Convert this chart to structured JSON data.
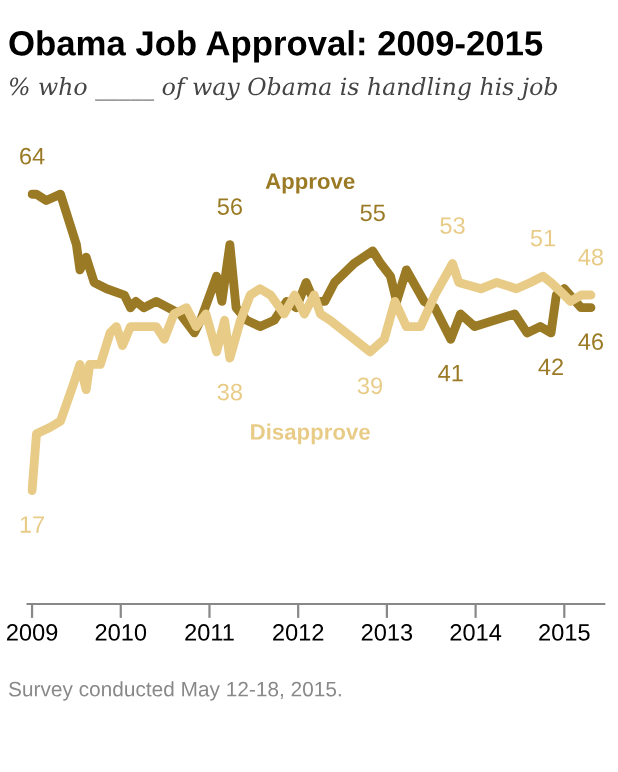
{
  "chart_data": {
    "type": "line",
    "title": "Obama Job Approval: 2009-2015",
    "subtitle": "% who _____ of way Obama is handling his job",
    "annotations": [
      "Survey conducted May 12-18, 2015."
    ],
    "xlim": [
      2008.95,
      2015.45
    ],
    "xticks": [
      2009,
      2010,
      2011,
      2012,
      2013,
      2014,
      2015
    ],
    "tick_labels": "x",
    "grid": false,
    "legend": false,
    "marker": "none",
    "line_style": "solid",
    "series": [
      {
        "name": "Approve",
        "color": "#9a7a25",
        "x": [
          2009.0,
          2009.05,
          2009.16,
          2009.32,
          2009.5,
          2009.54,
          2009.61,
          2009.7,
          2009.84,
          2010.04,
          2010.11,
          2010.17,
          2010.26,
          2010.4,
          2010.67,
          2010.83,
          2010.9,
          2011.08,
          2011.14,
          2011.23,
          2011.3,
          2011.42,
          2011.57,
          2011.73,
          2011.87,
          2011.98,
          2012.09,
          2012.18,
          2012.3,
          2012.41,
          2012.63,
          2012.84,
          2012.93,
          2013.04,
          2013.11,
          2013.22,
          2013.42,
          2013.54,
          2013.72,
          2013.83,
          2013.99,
          2014.44,
          2014.58,
          2014.73,
          2014.85,
          2014.91,
          2015.0,
          2015.19,
          2015.3
        ],
        "values": [
          64,
          64,
          63,
          64,
          56,
          52,
          54,
          50,
          49,
          48,
          46,
          47,
          46,
          47,
          45,
          42,
          44,
          51,
          47,
          56,
          46,
          44,
          43,
          44,
          47,
          46,
          50,
          47,
          47,
          50,
          53,
          55,
          53,
          51,
          47,
          52,
          47,
          46,
          41,
          45,
          43,
          45,
          42,
          43,
          42,
          48,
          49,
          46,
          46
        ],
        "value_labels": [
          "64",
          null,
          null,
          null,
          null,
          null,
          null,
          null,
          null,
          null,
          null,
          null,
          null,
          null,
          null,
          null,
          null,
          null,
          null,
          "56",
          null,
          null,
          null,
          null,
          null,
          null,
          null,
          null,
          null,
          null,
          null,
          "55",
          null,
          null,
          null,
          null,
          null,
          null,
          "41",
          null,
          null,
          null,
          null,
          null,
          "42",
          null,
          null,
          null,
          "46"
        ]
      },
      {
        "name": "Disapprove",
        "color": "#e8cb86",
        "x": [
          2009.0,
          2009.05,
          2009.2,
          2009.32,
          2009.47,
          2009.54,
          2009.61,
          2009.65,
          2009.77,
          2009.88,
          2009.95,
          2010.02,
          2010.11,
          2010.26,
          2010.4,
          2010.49,
          2010.6,
          2010.74,
          2010.85,
          2010.96,
          2011.08,
          2011.17,
          2011.23,
          2011.35,
          2011.46,
          2011.57,
          2011.69,
          2011.84,
          2011.96,
          2012.07,
          2012.18,
          2012.25,
          2012.36,
          2012.81,
          2012.97,
          2013.09,
          2013.22,
          2013.38,
          2013.54,
          2013.74,
          2013.81,
          2014.06,
          2014.24,
          2014.46,
          2014.62,
          2014.76,
          2014.85,
          2015.0,
          2015.07,
          2015.19,
          2015.3
        ],
        "values": [
          17,
          26,
          27,
          28,
          34,
          37,
          33,
          37,
          37,
          42,
          43,
          40,
          43,
          43,
          43,
          41,
          45,
          46,
          43,
          45,
          39,
          44,
          38,
          44,
          48,
          49,
          48,
          45,
          48,
          45,
          48,
          45,
          44,
          39,
          41,
          47,
          43,
          43,
          48,
          53,
          50,
          49,
          50,
          49,
          50,
          51,
          50,
          48,
          47,
          48,
          48
        ],
        "value_labels": [
          "17",
          null,
          null,
          null,
          null,
          null,
          null,
          null,
          null,
          null,
          null,
          null,
          null,
          null,
          null,
          null,
          null,
          null,
          null,
          null,
          null,
          null,
          "38",
          null,
          null,
          null,
          null,
          null,
          null,
          null,
          null,
          null,
          null,
          "39",
          null,
          null,
          null,
          null,
          null,
          "53",
          null,
          null,
          null,
          null,
          null,
          "51",
          null,
          null,
          null,
          null,
          "48"
        ]
      }
    ]
  }
}
